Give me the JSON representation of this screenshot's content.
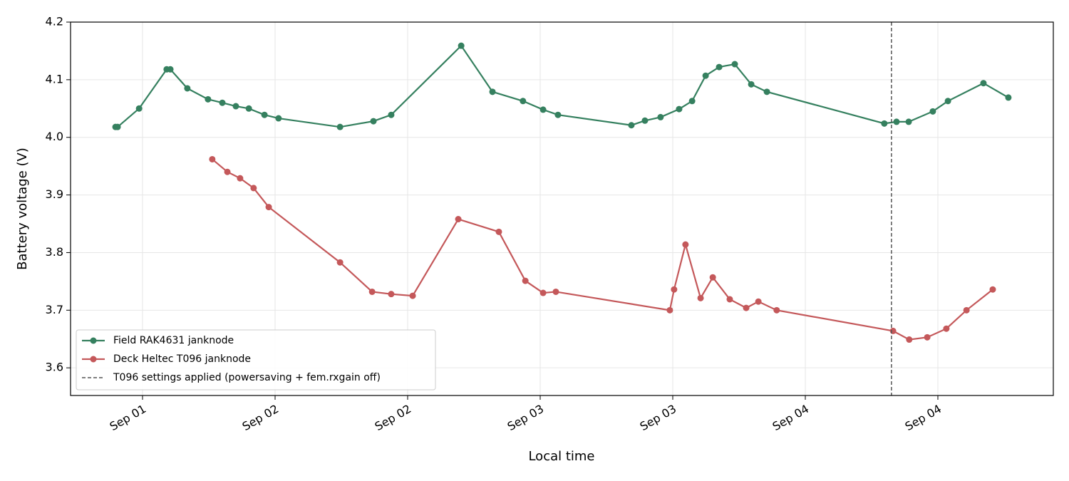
{
  "chart_data": {
    "type": "line",
    "xlabel": "Local time",
    "ylabel": "Battery voltage (V)",
    "xlim": [
      1.2285,
      4.9355
    ],
    "ylim": [
      3.552,
      4.2
    ],
    "xticks": [
      {
        "value": 1.5,
        "label": "Sep 01"
      },
      {
        "value": 2,
        "label": "Sep 02"
      },
      {
        "value": 2.5,
        "label": "Sep 02"
      },
      {
        "value": 3,
        "label": "Sep 03"
      },
      {
        "value": 3.5,
        "label": "Sep 03"
      },
      {
        "value": 4,
        "label": "Sep 04"
      },
      {
        "value": 4.5,
        "label": "Sep 04"
      }
    ],
    "yticks": [
      3.6,
      3.7,
      3.8,
      3.9,
      {
        "value": 4,
        "label": "4.0"
      },
      4.1,
      4.2
    ],
    "grid": true,
    "legend": "lower left",
    "series": [
      {
        "name": "Field RAK4631 janknode",
        "color": "#35805f",
        "x": [
          1.398,
          1.406,
          1.487,
          1.591,
          1.605,
          1.669,
          1.747,
          1.801,
          1.852,
          1.901,
          1.96,
          2.013,
          2.245,
          2.371,
          2.438,
          2.702,
          2.82,
          2.935,
          3.011,
          3.067,
          3.344,
          3.395,
          3.454,
          3.524,
          3.573,
          3.624,
          3.675,
          3.734,
          3.796,
          3.855,
          4.298,
          4.344,
          4.39,
          4.481,
          4.538,
          4.672,
          4.766
        ],
        "values": [
          4.018,
          4.018,
          4.05,
          4.118,
          4.118,
          4.085,
          4.066,
          4.06,
          4.054,
          4.05,
          4.039,
          4.033,
          4.018,
          4.028,
          4.039,
          4.159,
          4.079,
          4.063,
          4.048,
          4.039,
          4.021,
          4.029,
          4.035,
          4.049,
          4.063,
          4.107,
          4.122,
          4.127,
          4.092,
          4.079,
          4.024,
          4.027,
          4.027,
          4.045,
          4.063,
          4.094,
          4.069
        ]
      },
      {
        "name": "Deck Heltec T096 janknode",
        "color": "#c4585a",
        "x": [
          1.763,
          1.82,
          1.868,
          1.919,
          1.976,
          2.245,
          2.366,
          2.438,
          2.519,
          2.691,
          2.844,
          2.944,
          3.011,
          3.059,
          3.489,
          3.505,
          3.548,
          3.605,
          3.651,
          3.715,
          3.777,
          3.823,
          3.892,
          4.331,
          4.392,
          4.46,
          4.532,
          4.608,
          4.707
        ],
        "values": [
          3.962,
          3.94,
          3.929,
          3.912,
          3.879,
          3.783,
          3.732,
          3.728,
          3.725,
          3.858,
          3.836,
          3.751,
          3.73,
          3.732,
          3.7,
          3.736,
          3.814,
          3.721,
          3.757,
          3.719,
          3.704,
          3.715,
          3.7,
          3.664,
          3.649,
          3.653,
          3.668,
          3.7,
          3.736
        ]
      }
    ],
    "vlines": [
      {
        "x": 4.325,
        "name": "T096 settings applied (powersaving + fem.rxgain off)",
        "color": "#555555"
      }
    ]
  }
}
